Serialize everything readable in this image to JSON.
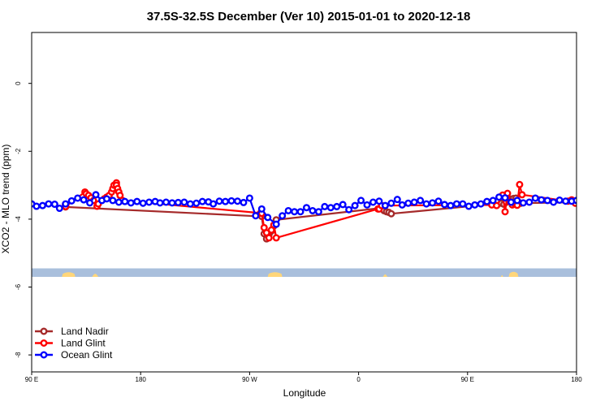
{
  "chart_data": {
    "type": "scatter",
    "title": "37.5S-32.5S December (Ver 10)   2015-01-01 to 2020-12-18",
    "xlabel": "Longitude",
    "ylabel": "XCO2 - MLO trend (ppm)",
    "xlim": [
      90,
      540
    ],
    "ylim": [
      -8.5,
      1.5
    ],
    "x_ticks": [
      {
        "value": 90,
        "label": "90 E"
      },
      {
        "value": 180,
        "label": "180"
      },
      {
        "value": 270,
        "label": "90 W"
      },
      {
        "value": 360,
        "label": "0"
      },
      {
        "value": 450,
        "label": "90 E"
      },
      {
        "value": 540,
        "label": "180"
      }
    ],
    "y_ticks": [
      {
        "value": 0,
        "label": "0"
      },
      {
        "value": -2,
        "label": "-2"
      },
      {
        "value": -4,
        "label": "-4"
      },
      {
        "value": -6,
        "label": "-6"
      },
      {
        "value": -8,
        "label": "-8"
      }
    ],
    "grid": false,
    "legend_position": "bottom-left",
    "map_band": {
      "y_top": -5.45,
      "y_bottom": -5.7,
      "ocean_color": "#a9bfdc",
      "land_color": "#ffd67a"
    },
    "series": [
      {
        "name": "Land Nadir",
        "color": "#a52a2a",
        "x": [
          118,
          118,
          118,
          118,
          280,
          282,
          284,
          286,
          288,
          290,
          292,
          379,
          381,
          383,
          385,
          387,
          478,
          480,
          482,
          484,
          486,
          488,
          490,
          492,
          494,
          539
        ],
        "y": [
          -3.57,
          -3.6,
          -3.63,
          -3.64,
          -3.92,
          -4.43,
          -4.58,
          -4.45,
          -4.35,
          -4.2,
          -4.02,
          -3.67,
          -3.75,
          -3.78,
          -3.8,
          -3.84,
          -3.53,
          -3.56,
          -3.5,
          -3.45,
          -3.41,
          -3.39,
          -3.38,
          -3.5,
          -3.53,
          -3.5
        ]
      },
      {
        "name": "Land Glint",
        "color": "#ff0000",
        "x": [
          118,
          118,
          118,
          118,
          134,
          135,
          137,
          139,
          141,
          144,
          145,
          150,
          152,
          154,
          156,
          157,
          158,
          160,
          160,
          161,
          162,
          163,
          165,
          279,
          280,
          282,
          284,
          286,
          288,
          290,
          292,
          376,
          377,
          379,
          470,
          474,
          479,
          481,
          483,
          485,
          487,
          489,
          491,
          493,
          495,
          533,
          536,
          539
        ],
        "y": [
          -3.56,
          -3.6,
          -3.57,
          -3.63,
          -3.2,
          -3.25,
          -3.3,
          -3.37,
          -3.45,
          -3.62,
          -3.55,
          -3.4,
          -3.35,
          -3.3,
          -3.2,
          -3.1,
          -3.0,
          -2.93,
          -3.0,
          -3.1,
          -3.2,
          -3.3,
          -3.45,
          -3.82,
          -3.83,
          -4.25,
          -4.4,
          -4.55,
          -4.32,
          -4.17,
          -4.55,
          -3.7,
          -3.7,
          -3.6,
          -3.58,
          -3.6,
          -3.29,
          -3.78,
          -3.24,
          -3.48,
          -3.58,
          -3.55,
          -3.59,
          -2.98,
          -3.28,
          -3.47,
          -3.43,
          -3.53
        ]
      },
      {
        "name": "Ocean Glint",
        "color": "#0000ff",
        "x": [
          90,
          94,
          99,
          104,
          109,
          113,
          118,
          123,
          128,
          133,
          138,
          143,
          148,
          152,
          157,
          162,
          167,
          172,
          177,
          182,
          187,
          192,
          196,
          201,
          206,
          211,
          216,
          221,
          226,
          231,
          236,
          240,
          245,
          250,
          255,
          260,
          265,
          270,
          275,
          280,
          285,
          292,
          297,
          302,
          307,
          312,
          317,
          322,
          327,
          332,
          337,
          342,
          347,
          352,
          357,
          362,
          367,
          372,
          377,
          382,
          387,
          392,
          396,
          401,
          406,
          411,
          416,
          421,
          426,
          431,
          436,
          441,
          446,
          451,
          456,
          461,
          466,
          471,
          476,
          481,
          486,
          491,
          496,
          501,
          506,
          511,
          516,
          521,
          526,
          531,
          536,
          540
        ],
        "y": [
          -3.55,
          -3.62,
          -3.6,
          -3.55,
          -3.56,
          -3.68,
          -3.55,
          -3.46,
          -3.38,
          -3.43,
          -3.52,
          -3.28,
          -3.45,
          -3.4,
          -3.45,
          -3.5,
          -3.48,
          -3.52,
          -3.48,
          -3.53,
          -3.5,
          -3.48,
          -3.52,
          -3.5,
          -3.52,
          -3.51,
          -3.5,
          -3.55,
          -3.53,
          -3.48,
          -3.49,
          -3.55,
          -3.47,
          -3.48,
          -3.46,
          -3.47,
          -3.51,
          -3.38,
          -3.9,
          -3.7,
          -3.95,
          -4.15,
          -3.9,
          -3.75,
          -3.78,
          -3.78,
          -3.66,
          -3.75,
          -3.78,
          -3.63,
          -3.66,
          -3.63,
          -3.57,
          -3.72,
          -3.6,
          -3.45,
          -3.58,
          -3.5,
          -3.47,
          -3.6,
          -3.53,
          -3.42,
          -3.58,
          -3.53,
          -3.5,
          -3.45,
          -3.55,
          -3.52,
          -3.47,
          -3.57,
          -3.6,
          -3.55,
          -3.55,
          -3.62,
          -3.58,
          -3.55,
          -3.48,
          -3.45,
          -3.35,
          -3.37,
          -3.5,
          -3.45,
          -3.52,
          -3.5,
          -3.38,
          -3.43,
          -3.45,
          -3.5,
          -3.44,
          -3.47,
          -3.47,
          -3.45
        ]
      }
    ]
  }
}
